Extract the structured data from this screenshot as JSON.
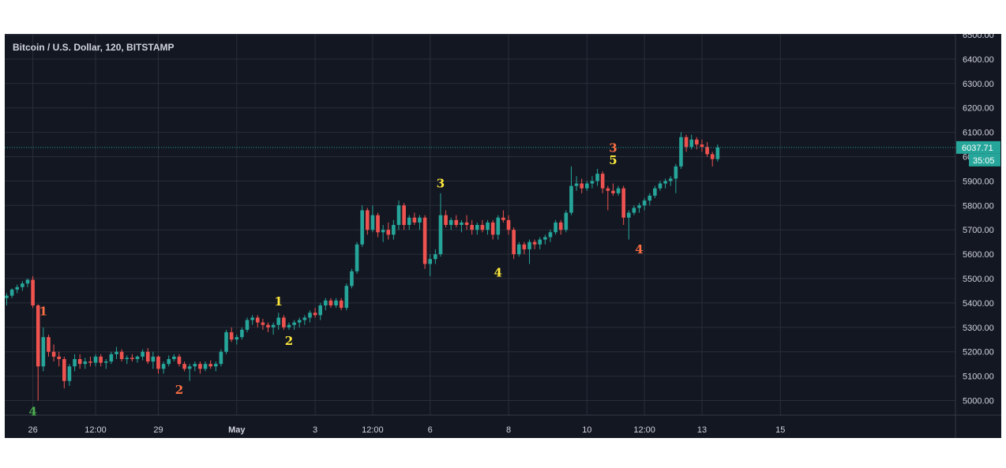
{
  "chart_data": {
    "type": "candlestick",
    "title": "Bitcoin / U.S. Dollar, 120, BITSTAMP",
    "ylim": [
      4950,
      6500
    ],
    "y_ticks": [
      5000,
      5100,
      5200,
      5300,
      5400,
      5500,
      5600,
      5700,
      5800,
      5900,
      6000,
      6100,
      6200,
      6300,
      6400,
      6500
    ],
    "y_tick_labels": [
      "5000.00",
      "5100.00",
      "5200.00",
      "5300.00",
      "5400.00",
      "5500.00",
      "5600.00",
      "5700.00",
      "5800.00",
      "5900.00",
      "6000.00",
      "6100.00",
      "6200.00",
      "6300.00",
      "6400.00",
      "6500.00"
    ],
    "x_ticks": [
      {
        "label": "26",
        "bar": 5
      },
      {
        "label": "12:00",
        "bar": 17
      },
      {
        "label": "29",
        "bar": 29
      },
      {
        "label": "May",
        "bar": 44
      },
      {
        "label": "3",
        "bar": 59
      },
      {
        "label": "12:00",
        "bar": 70
      },
      {
        "label": "6",
        "bar": 81
      },
      {
        "label": "8",
        "bar": 96
      },
      {
        "label": "10",
        "bar": 111
      },
      {
        "label": "12:00",
        "bar": 122
      },
      {
        "label": "13",
        "bar": 133
      },
      {
        "label": "15",
        "bar": 148
      }
    ],
    "grid": true,
    "last_price": 6037.71,
    "last_price_label": "6037.71",
    "countdown": "35:05",
    "colors": {
      "up": "#26a69a",
      "down": "#ef5350",
      "background": "#131722",
      "grid": "#2a2e39",
      "axis_text": "#d1d4dc",
      "price_badge": "#26a69a"
    },
    "candles": [
      [
        5420,
        5440,
        5390,
        5430
      ],
      [
        5430,
        5460,
        5420,
        5455
      ],
      [
        5455,
        5475,
        5440,
        5465
      ],
      [
        5465,
        5490,
        5450,
        5480
      ],
      [
        5480,
        5500,
        5465,
        5495
      ],
      [
        5495,
        5510,
        5380,
        5390
      ],
      [
        5390,
        5395,
        5000,
        5140
      ],
      [
        5140,
        5300,
        5120,
        5260
      ],
      [
        5260,
        5270,
        5180,
        5200
      ],
      [
        5200,
        5230,
        5160,
        5180
      ],
      [
        5180,
        5200,
        5140,
        5170
      ],
      [
        5170,
        5180,
        5050,
        5080
      ],
      [
        5080,
        5150,
        5060,
        5140
      ],
      [
        5140,
        5190,
        5120,
        5170
      ],
      [
        5170,
        5190,
        5130,
        5150
      ],
      [
        5150,
        5175,
        5130,
        5160
      ],
      [
        5160,
        5180,
        5140,
        5155
      ],
      [
        5155,
        5190,
        5140,
        5180
      ],
      [
        5180,
        5190,
        5140,
        5155
      ],
      [
        5155,
        5170,
        5130,
        5160
      ],
      [
        5160,
        5200,
        5150,
        5190
      ],
      [
        5190,
        5220,
        5170,
        5200
      ],
      [
        5200,
        5210,
        5160,
        5170
      ],
      [
        5170,
        5185,
        5150,
        5175
      ],
      [
        5175,
        5190,
        5160,
        5170
      ],
      [
        5170,
        5185,
        5155,
        5180
      ],
      [
        5180,
        5210,
        5165,
        5200
      ],
      [
        5200,
        5215,
        5150,
        5160
      ],
      [
        5160,
        5200,
        5130,
        5180
      ],
      [
        5180,
        5185,
        5110,
        5130
      ],
      [
        5130,
        5160,
        5110,
        5150
      ],
      [
        5150,
        5185,
        5140,
        5170
      ],
      [
        5170,
        5190,
        5160,
        5180
      ],
      [
        5180,
        5190,
        5140,
        5150
      ],
      [
        5150,
        5160,
        5120,
        5130
      ],
      [
        5130,
        5150,
        5080,
        5140
      ],
      [
        5140,
        5160,
        5120,
        5150
      ],
      [
        5150,
        5160,
        5110,
        5130
      ],
      [
        5130,
        5160,
        5120,
        5150
      ],
      [
        5150,
        5165,
        5130,
        5140
      ],
      [
        5140,
        5160,
        5120,
        5150
      ],
      [
        5150,
        5210,
        5140,
        5200
      ],
      [
        5200,
        5290,
        5190,
        5280
      ],
      [
        5280,
        5300,
        5240,
        5250
      ],
      [
        5250,
        5270,
        5230,
        5260
      ],
      [
        5260,
        5300,
        5250,
        5290
      ],
      [
        5290,
        5340,
        5280,
        5330
      ],
      [
        5330,
        5350,
        5310,
        5340
      ],
      [
        5340,
        5350,
        5300,
        5320
      ],
      [
        5320,
        5335,
        5290,
        5310
      ],
      [
        5310,
        5320,
        5280,
        5300
      ],
      [
        5300,
        5320,
        5270,
        5310
      ],
      [
        5310,
        5360,
        5290,
        5340
      ],
      [
        5340,
        5350,
        5290,
        5300
      ],
      [
        5300,
        5320,
        5290,
        5310
      ],
      [
        5310,
        5330,
        5290,
        5320
      ],
      [
        5320,
        5340,
        5300,
        5330
      ],
      [
        5330,
        5350,
        5310,
        5340
      ],
      [
        5340,
        5370,
        5320,
        5360
      ],
      [
        5360,
        5380,
        5340,
        5350
      ],
      [
        5350,
        5400,
        5330,
        5390
      ],
      [
        5390,
        5420,
        5370,
        5410
      ],
      [
        5410,
        5420,
        5380,
        5390
      ],
      [
        5390,
        5420,
        5380,
        5410
      ],
      [
        5410,
        5420,
        5370,
        5380
      ],
      [
        5380,
        5480,
        5370,
        5470
      ],
      [
        5470,
        5540,
        5460,
        5530
      ],
      [
        5530,
        5650,
        5520,
        5640
      ],
      [
        5640,
        5800,
        5630,
        5780
      ],
      [
        5780,
        5790,
        5680,
        5700
      ],
      [
        5700,
        5800,
        5690,
        5760
      ],
      [
        5760,
        5770,
        5670,
        5690
      ],
      [
        5690,
        5720,
        5650,
        5700
      ],
      [
        5700,
        5730,
        5660,
        5680
      ],
      [
        5680,
        5740,
        5660,
        5720
      ],
      [
        5720,
        5820,
        5700,
        5800
      ],
      [
        5800,
        5810,
        5700,
        5720
      ],
      [
        5720,
        5760,
        5700,
        5750
      ],
      [
        5750,
        5770,
        5720,
        5730
      ],
      [
        5730,
        5760,
        5700,
        5750
      ],
      [
        5750,
        5760,
        5540,
        5560
      ],
      [
        5560,
        5600,
        5510,
        5580
      ],
      [
        5580,
        5620,
        5560,
        5600
      ],
      [
        5600,
        5850,
        5590,
        5760
      ],
      [
        5760,
        5780,
        5710,
        5720
      ],
      [
        5720,
        5750,
        5700,
        5740
      ],
      [
        5740,
        5760,
        5710,
        5720
      ],
      [
        5720,
        5740,
        5690,
        5730
      ],
      [
        5730,
        5760,
        5700,
        5720
      ],
      [
        5720,
        5740,
        5680,
        5700
      ],
      [
        5700,
        5730,
        5680,
        5720
      ],
      [
        5720,
        5740,
        5690,
        5700
      ],
      [
        5700,
        5740,
        5680,
        5730
      ],
      [
        5730,
        5740,
        5660,
        5680
      ],
      [
        5680,
        5760,
        5660,
        5750
      ],
      [
        5750,
        5780,
        5730,
        5740
      ],
      [
        5740,
        5760,
        5680,
        5700
      ],
      [
        5700,
        5710,
        5580,
        5600
      ],
      [
        5600,
        5650,
        5590,
        5640
      ],
      [
        5640,
        5650,
        5600,
        5620
      ],
      [
        5620,
        5660,
        5560,
        5650
      ],
      [
        5650,
        5660,
        5620,
        5640
      ],
      [
        5640,
        5670,
        5620,
        5660
      ],
      [
        5660,
        5680,
        5640,
        5670
      ],
      [
        5670,
        5700,
        5650,
        5690
      ],
      [
        5690,
        5740,
        5680,
        5730
      ],
      [
        5730,
        5740,
        5680,
        5700
      ],
      [
        5700,
        5780,
        5690,
        5770
      ],
      [
        5770,
        5960,
        5760,
        5880
      ],
      [
        5880,
        5920,
        5860,
        5890
      ],
      [
        5890,
        5910,
        5850,
        5870
      ],
      [
        5870,
        5900,
        5860,
        5890
      ],
      [
        5890,
        5920,
        5870,
        5900
      ],
      [
        5900,
        5950,
        5880,
        5930
      ],
      [
        5930,
        5940,
        5850,
        5870
      ],
      [
        5870,
        5880,
        5780,
        5860
      ],
      [
        5860,
        5890,
        5840,
        5850
      ],
      [
        5850,
        5880,
        5840,
        5870
      ],
      [
        5870,
        5880,
        5720,
        5750
      ],
      [
        5750,
        5780,
        5660,
        5770
      ],
      [
        5770,
        5800,
        5760,
        5790
      ],
      [
        5790,
        5810,
        5770,
        5800
      ],
      [
        5800,
        5830,
        5780,
        5820
      ],
      [
        5820,
        5850,
        5800,
        5840
      ],
      [
        5840,
        5880,
        5830,
        5870
      ],
      [
        5870,
        5900,
        5860,
        5890
      ],
      [
        5890,
        5910,
        5870,
        5900
      ],
      [
        5900,
        5920,
        5880,
        5910
      ],
      [
        5910,
        5970,
        5850,
        5960
      ],
      [
        5960,
        6100,
        5950,
        6080
      ],
      [
        6080,
        6090,
        6020,
        6040
      ],
      [
        6040,
        6090,
        6030,
        6070
      ],
      [
        6070,
        6080,
        6030,
        6050
      ],
      [
        6050,
        6070,
        6020,
        6040
      ],
      [
        6040,
        6060,
        6000,
        6010
      ],
      [
        6010,
        6020,
        5960,
        5990
      ],
      [
        5990,
        6050,
        5980,
        6037.71
      ]
    ],
    "annotations": [
      {
        "label": "4",
        "bar": 5,
        "price": 4990,
        "side": "below",
        "color": "#4caf50"
      },
      {
        "label": "1",
        "bar": 7,
        "price": 5330,
        "side": "above",
        "color": "#ff7043"
      },
      {
        "label": "2",
        "bar": 33,
        "price": 5080,
        "side": "below",
        "color": "#ff7043"
      },
      {
        "label": "1",
        "bar": 52,
        "price": 5370,
        "side": "above",
        "color": "#ffeb3b"
      },
      {
        "label": "2",
        "bar": 54,
        "price": 5280,
        "side": "below",
        "color": "#ffeb3b"
      },
      {
        "label": "3",
        "bar": 83,
        "price": 5855,
        "side": "above",
        "color": "#ffeb3b"
      },
      {
        "label": "4",
        "bar": 94,
        "price": 5560,
        "side": "below",
        "color": "#ffeb3b"
      },
      {
        "label": "3",
        "bar": 116,
        "price": 6000,
        "side": "above",
        "color": "#ff7043"
      },
      {
        "label": "5",
        "bar": 116,
        "price": 5950,
        "side": "above",
        "color": "#ffeb3b"
      },
      {
        "label": "4",
        "bar": 121,
        "price": 5655,
        "side": "below",
        "color": "#ff7043"
      }
    ]
  }
}
